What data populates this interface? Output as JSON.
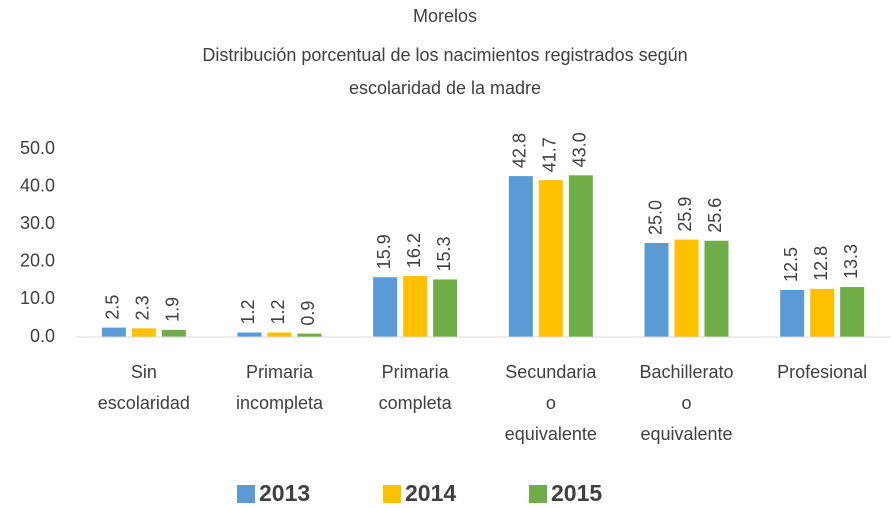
{
  "chart_data": {
    "type": "bar",
    "title": "Morelos",
    "subtitle": [
      "Distribución porcentual de los nacimientos registrados según",
      "escolaridad de la madre"
    ],
    "categories": [
      [
        "Sin",
        "escolaridad"
      ],
      [
        "Primaria",
        "incompleta"
      ],
      [
        "Primaria",
        "completa"
      ],
      [
        "Secundaria",
        "o",
        "equivalente"
      ],
      [
        "Bachillerato",
        "o",
        "equivalente"
      ],
      [
        "Profesional"
      ]
    ],
    "series": [
      {
        "name": "2013",
        "color": "#5b9bd5",
        "values": [
          2.5,
          1.2,
          15.9,
          42.8,
          25.0,
          12.5
        ],
        "value_labels": [
          "2.5",
          "1.2",
          "15.9",
          "42.8",
          "25.0",
          "12.5"
        ]
      },
      {
        "name": "2014",
        "color": "#ffc000",
        "values": [
          2.3,
          1.2,
          16.2,
          41.7,
          25.9,
          12.8
        ],
        "value_labels": [
          "2.3",
          "1.2",
          "16.2",
          "41.7",
          "25.9",
          "12.8"
        ]
      },
      {
        "name": "2015",
        "color": "#70ad47",
        "values": [
          1.9,
          0.9,
          15.3,
          43.0,
          25.6,
          13.3
        ],
        "value_labels": [
          "1.9",
          "0.9",
          "15.3",
          "43.0",
          "25.6",
          "13.3"
        ]
      }
    ],
    "ylim": [
      0,
      50
    ],
    "yticks": [
      {
        "value": 0,
        "label": "0.0"
      },
      {
        "value": 10,
        "label": "10.0"
      },
      {
        "value": 20,
        "label": "20.0"
      },
      {
        "value": 30,
        "label": "30.0"
      },
      {
        "value": 40,
        "label": "40.0"
      },
      {
        "value": 50,
        "label": "50.0"
      }
    ],
    "grid": false,
    "legend": "bottom"
  }
}
